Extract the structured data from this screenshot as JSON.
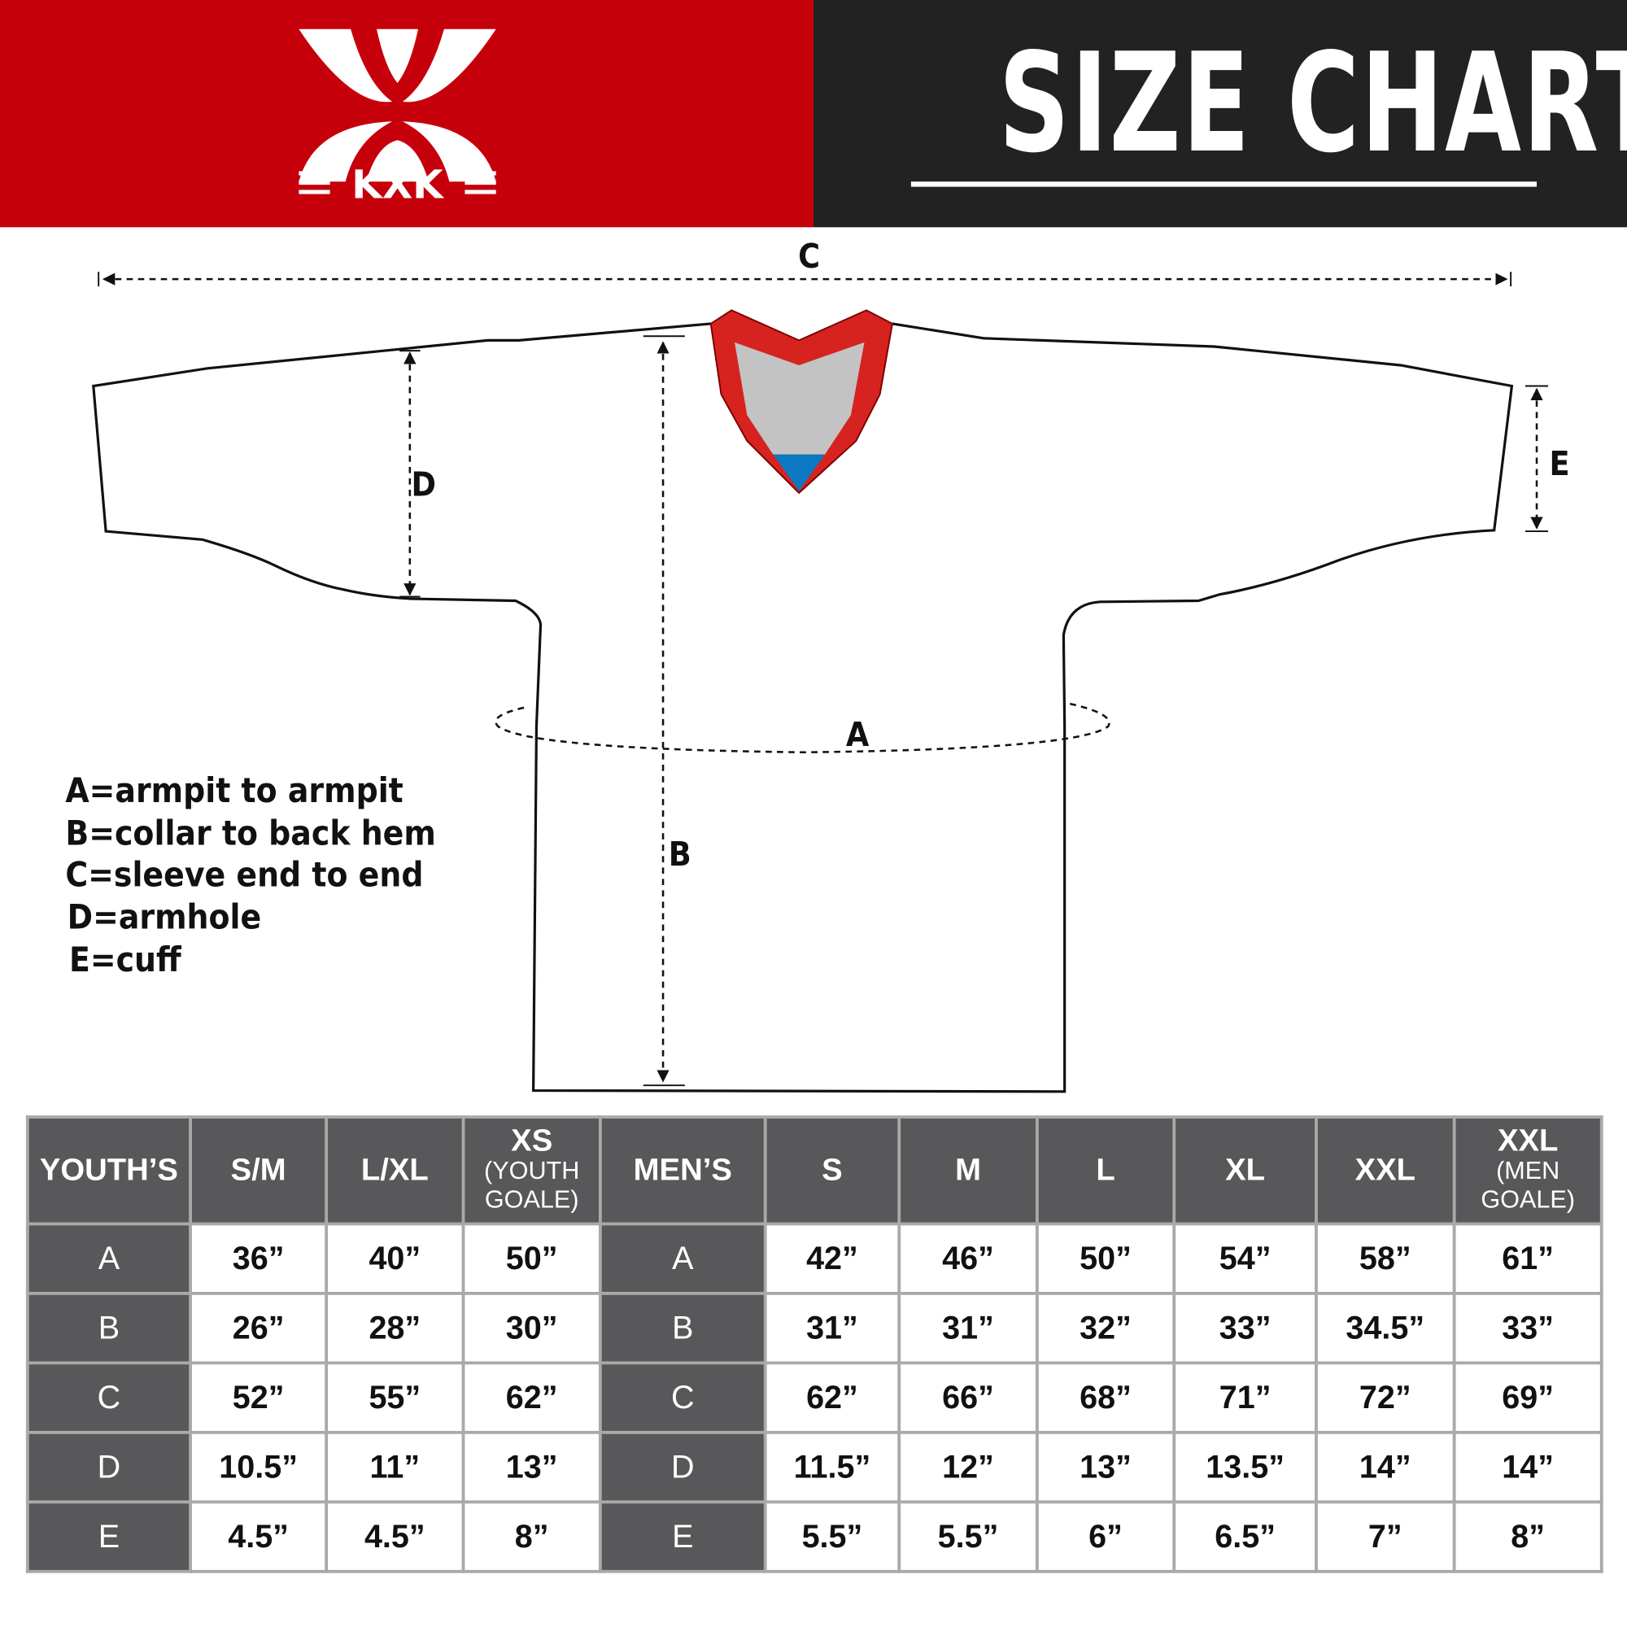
{
  "brand": {
    "logo_text": "KXK",
    "color": "#c6000b"
  },
  "header": {
    "title": "SIZE CHART"
  },
  "diagram": {
    "labels": {
      "A": "A",
      "B": "B",
      "C": "C",
      "D": "D",
      "E": "E"
    },
    "legend": [
      "A=armpit to armpit",
      "B=collar to back hem",
      "C=sleeve end to end",
      "D=armhole",
      "E=cuff"
    ]
  },
  "table": {
    "youth": {
      "header": "YOUTH’S",
      "columns": [
        {
          "main": "S/M",
          "sub": ""
        },
        {
          "main": "L/XL",
          "sub": ""
        },
        {
          "main": "XS",
          "sub": "(YOUTH GOALE)"
        }
      ]
    },
    "men": {
      "header": "MEN’S",
      "columns": [
        {
          "main": "S",
          "sub": ""
        },
        {
          "main": "M",
          "sub": ""
        },
        {
          "main": "L",
          "sub": ""
        },
        {
          "main": "XL",
          "sub": ""
        },
        {
          "main": "XXL",
          "sub": ""
        },
        {
          "main": "XXL",
          "sub": "(MEN GOALE)"
        }
      ]
    },
    "rows": [
      {
        "label": "A",
        "youth": [
          "36”",
          "40”",
          "50”"
        ],
        "men": [
          "42”",
          "46”",
          "50”",
          "54”",
          "58”",
          "61”"
        ]
      },
      {
        "label": "B",
        "youth": [
          "26”",
          "28”",
          "30”"
        ],
        "men": [
          "31”",
          "31”",
          "32”",
          "33”",
          "34.5”",
          "33”"
        ]
      },
      {
        "label": "C",
        "youth": [
          "52”",
          "55”",
          "62”"
        ],
        "men": [
          "62”",
          "66”",
          "68”",
          "71”",
          "72”",
          "69”"
        ]
      },
      {
        "label": "D",
        "youth": [
          "10.5”",
          "11”",
          "13”"
        ],
        "men": [
          "11.5”",
          "12”",
          "13”",
          "13.5”",
          "14”",
          "14”"
        ]
      },
      {
        "label": "E",
        "youth": [
          "4.5”",
          "4.5”",
          "8”"
        ],
        "men": [
          "5.5”",
          "5.5”",
          "6”",
          "6.5”",
          "7”",
          "8”"
        ]
      }
    ]
  }
}
